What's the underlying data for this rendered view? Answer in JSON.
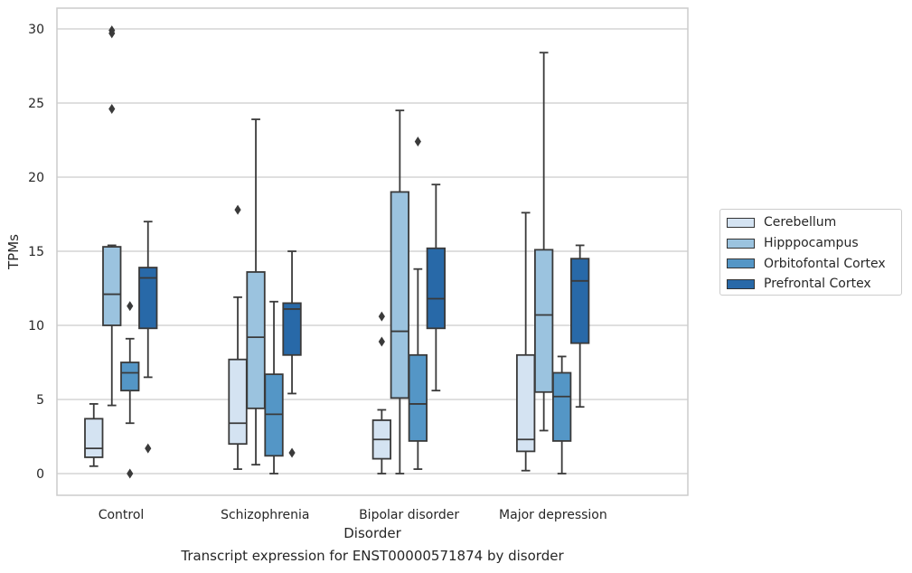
{
  "caption": "Transcript expression for ENST00000571874 by disorder",
  "chart_data": {
    "type": "box",
    "title": "",
    "xlabel": "Disorder",
    "ylabel": "TPMs",
    "ylim": [
      -1.4,
      31.4
    ],
    "yticks": [
      0,
      5,
      10,
      15,
      20,
      25,
      30
    ],
    "grid": "horizontal",
    "legend_position": "right",
    "categories": [
      "Control",
      "Schizophrenia",
      "Bipolar disorder",
      "Major depression"
    ],
    "series": [
      {
        "name": "Cerebellum",
        "color": "#d4e3f2",
        "boxes": [
          {
            "whislo": 0.5,
            "q1": 1.1,
            "med": 1.7,
            "q3": 3.7,
            "whishi": 4.7,
            "fliers": []
          },
          {
            "whislo": 0.3,
            "q1": 2.0,
            "med": 3.4,
            "q3": 7.7,
            "whishi": 11.9,
            "fliers": [
              17.8
            ]
          },
          {
            "whislo": 0.0,
            "q1": 1.0,
            "med": 2.3,
            "q3": 3.6,
            "whishi": 4.3,
            "fliers": [
              10.6,
              8.9
            ]
          },
          {
            "whislo": 0.2,
            "q1": 1.5,
            "med": 2.3,
            "q3": 8.0,
            "whishi": 17.6,
            "fliers": []
          }
        ]
      },
      {
        "name": "Hipppocampus",
        "color": "#9bc3df",
        "boxes": [
          {
            "whislo": 4.6,
            "q1": 10.0,
            "med": 12.1,
            "q3": 15.3,
            "whishi": 15.4,
            "fliers": [
              29.9,
              29.7,
              24.6
            ]
          },
          {
            "whislo": 0.6,
            "q1": 4.4,
            "med": 9.2,
            "q3": 13.6,
            "whishi": 23.9,
            "fliers": []
          },
          {
            "whislo": 0.0,
            "q1": 5.1,
            "med": 9.6,
            "q3": 19.0,
            "whishi": 24.5,
            "fliers": []
          },
          {
            "whislo": 2.9,
            "q1": 5.5,
            "med": 10.7,
            "q3": 15.1,
            "whishi": 28.4,
            "fliers": []
          }
        ]
      },
      {
        "name": "Orbitofontal Cortex",
        "color": "#5496c6",
        "boxes": [
          {
            "whislo": 3.4,
            "q1": 5.6,
            "med": 6.8,
            "q3": 7.5,
            "whishi": 9.1,
            "fliers": [
              11.3,
              0.0
            ]
          },
          {
            "whislo": 0.0,
            "q1": 1.2,
            "med": 4.0,
            "q3": 6.7,
            "whishi": 11.6,
            "fliers": []
          },
          {
            "whislo": 0.3,
            "q1": 2.2,
            "med": 4.7,
            "q3": 8.0,
            "whishi": 13.8,
            "fliers": [
              22.4
            ]
          },
          {
            "whislo": 0.0,
            "q1": 2.2,
            "med": 5.2,
            "q3": 6.8,
            "whishi": 7.9,
            "fliers": []
          }
        ]
      },
      {
        "name": "Prefrontal Cortex",
        "color": "#2869a8",
        "boxes": [
          {
            "whislo": 6.5,
            "q1": 9.8,
            "med": 13.2,
            "q3": 13.9,
            "whishi": 17.0,
            "fliers": [
              1.7
            ]
          },
          {
            "whislo": 5.4,
            "q1": 8.0,
            "med": 11.1,
            "q3": 11.5,
            "whishi": 15.0,
            "fliers": [
              1.4
            ]
          },
          {
            "whislo": 5.6,
            "q1": 9.8,
            "med": 11.8,
            "q3": 15.2,
            "whishi": 19.5,
            "fliers": []
          },
          {
            "whislo": 4.5,
            "q1": 8.8,
            "med": 13.0,
            "q3": 14.5,
            "whishi": 15.4,
            "fliers": []
          }
        ]
      }
    ]
  }
}
